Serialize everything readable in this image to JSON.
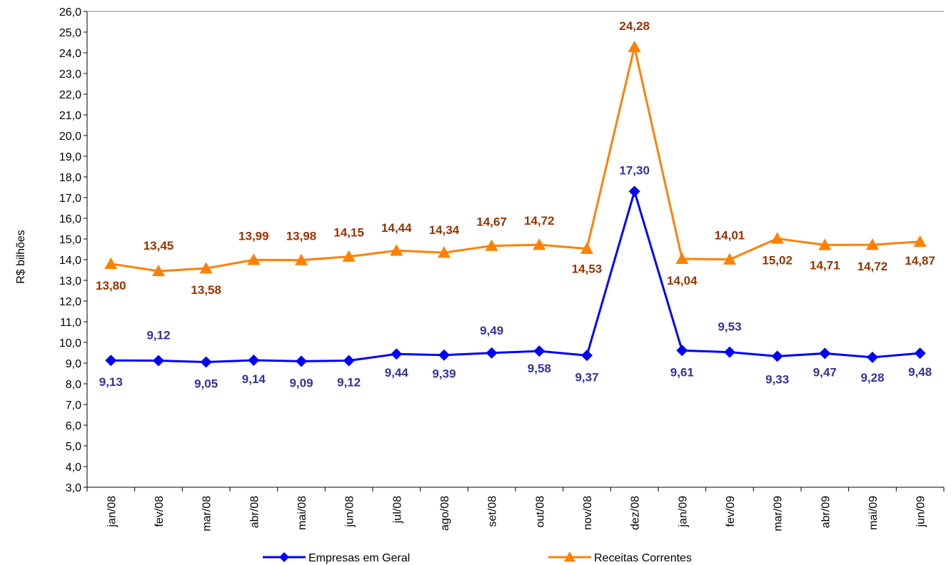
{
  "chart_data": {
    "type": "line",
    "ylabel": "R$ bilhões",
    "ylim": [
      3.0,
      26.0
    ],
    "y_ticks": [
      "3,0",
      "4,0",
      "5,0",
      "6,0",
      "7,0",
      "8,0",
      "9,0",
      "10,0",
      "11,0",
      "12,0",
      "13,0",
      "14,0",
      "15,0",
      "16,0",
      "17,0",
      "18,0",
      "19,0",
      "20,0",
      "21,0",
      "22,0",
      "23,0",
      "24,0",
      "25,0",
      "26,0"
    ],
    "categories": [
      "jan/08",
      "fev/08",
      "mar/08",
      "abr/08",
      "mai/08",
      "jun/08",
      "jul/08",
      "ago/08",
      "set/08",
      "out/08",
      "nov/08",
      "dez/08",
      "jan/09",
      "fev/09",
      "mar/09",
      "abr/09",
      "mai/09",
      "jun/09"
    ],
    "legend_position": "bottom",
    "grid": false,
    "series": [
      {
        "name": "Empresas em Geral",
        "color": "#0000ff",
        "label_color": "#333399",
        "marker": "diamond",
        "values": [
          9.13,
          9.12,
          9.05,
          9.14,
          9.09,
          9.12,
          9.44,
          9.39,
          9.49,
          9.58,
          9.37,
          17.3,
          9.61,
          9.53,
          9.33,
          9.47,
          9.28,
          9.48
        ],
        "labels": [
          "9,13",
          "9,12",
          "9,05",
          "9,14",
          "9,09",
          "9,12",
          "9,44",
          "9,39",
          "9,49",
          "9,58",
          "9,37",
          "17,30",
          "9,61",
          "9,53",
          "9,33",
          "9,47",
          "9,28",
          "9,48"
        ]
      },
      {
        "name": "Receitas Correntes",
        "color": "#ff8000",
        "label_color": "#993300",
        "marker": "triangle",
        "values": [
          13.8,
          13.45,
          13.58,
          13.99,
          13.98,
          14.15,
          14.44,
          14.34,
          14.67,
          14.72,
          14.53,
          24.28,
          14.04,
          14.01,
          15.02,
          14.71,
          14.72,
          14.87
        ],
        "labels": [
          "13,80",
          "13,45",
          "13,58",
          "13,99",
          "13,98",
          "14,15",
          "14,44",
          "14,34",
          "14,67",
          "14,72",
          "14,53",
          "24,28",
          "14,04",
          "14,01",
          "15,02",
          "14,71",
          "14,72",
          "14,87"
        ]
      }
    ]
  }
}
